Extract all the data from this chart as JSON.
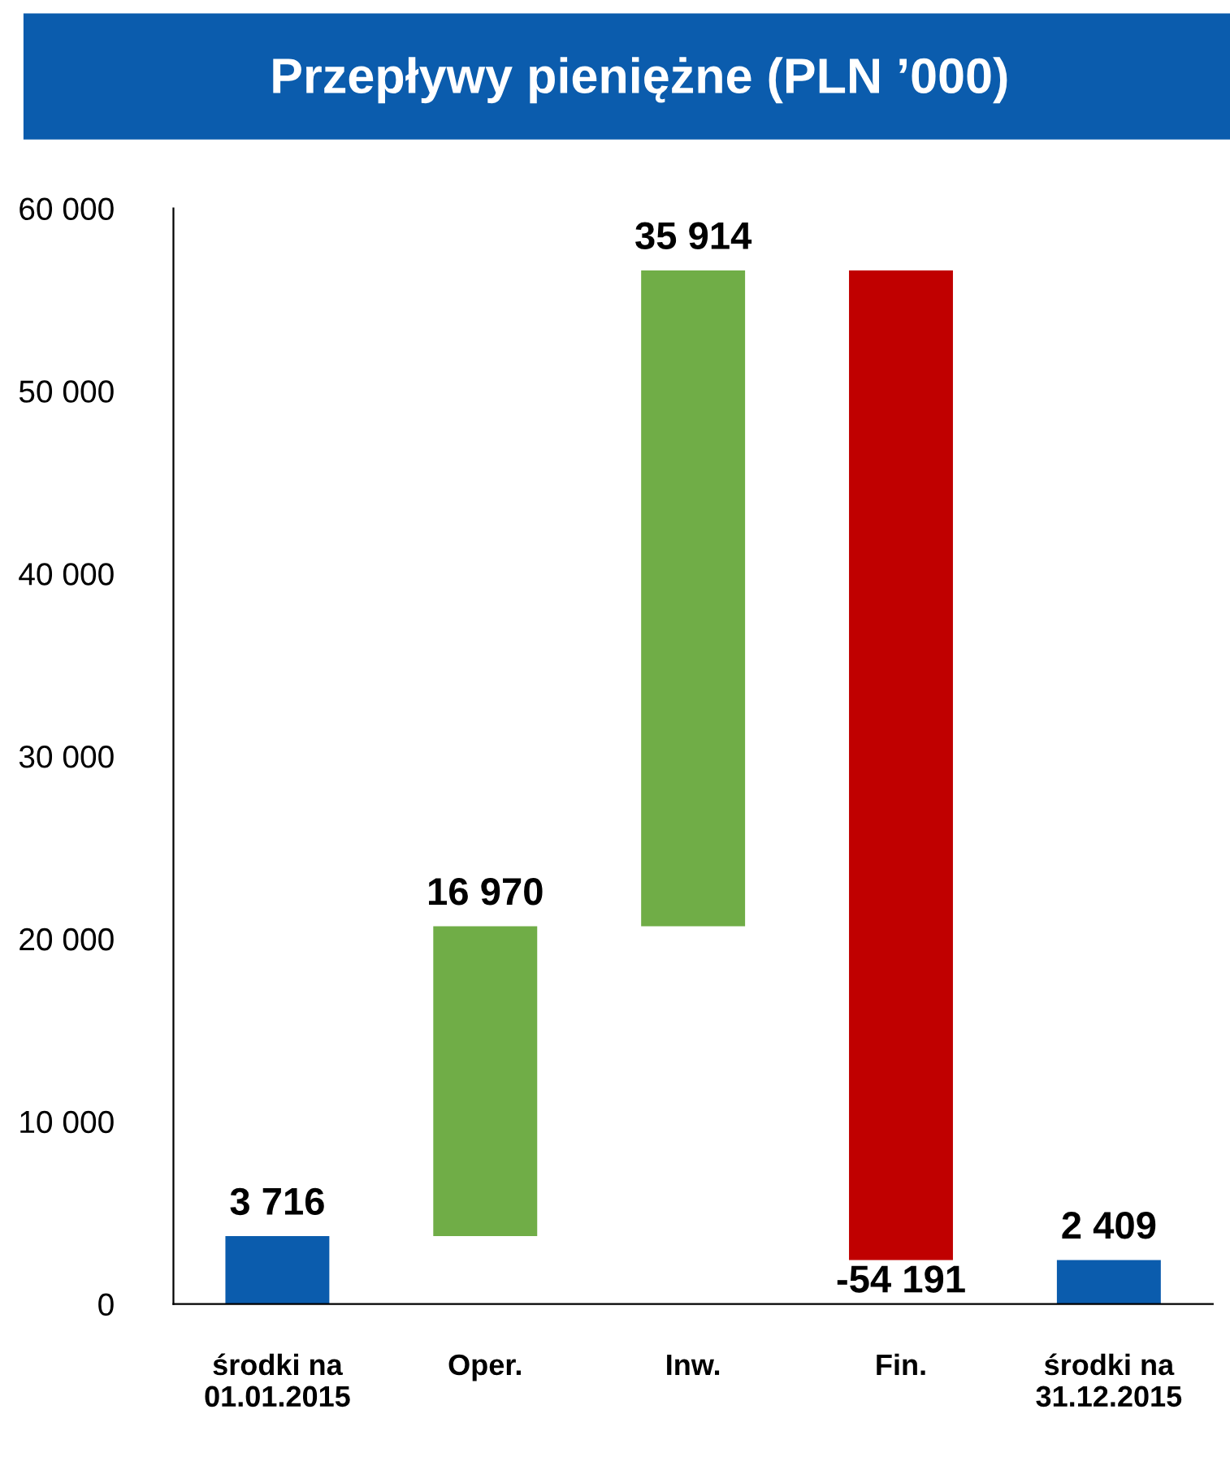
{
  "chart_data": {
    "type": "bar",
    "title": "Przepływy pieniężne (PLN ’000)",
    "categories": [
      "środki na\n01.01.2015",
      "Oper.",
      "Inw.",
      "Fin.",
      "środki na\n31.12.2015"
    ],
    "values": [
      3716,
      16970,
      35914,
      -54191,
      2409
    ],
    "base": [
      0,
      3716,
      20686,
      56600,
      0
    ],
    "colors": [
      "#0b5cad",
      "#70ad47",
      "#70ad47",
      "#c00000",
      "#0b5cad"
    ],
    "value_labels": [
      "3 716",
      "16 970",
      "35 914",
      "-54 191",
      "2 409"
    ],
    "ylim": [
      0,
      60000
    ],
    "yticks": [
      0,
      {
        "value": 10000,
        "label": "10 000"
      },
      {
        "value": 20000,
        "label": "20 000"
      },
      {
        "value": 30000,
        "label": "30 000"
      },
      {
        "value": 40000,
        "label": "40 000"
      },
      {
        "value": 50000,
        "label": "50 000"
      },
      {
        "value": 60000,
        "label": "60 000"
      }
    ],
    "grid": false,
    "legend": false
  }
}
